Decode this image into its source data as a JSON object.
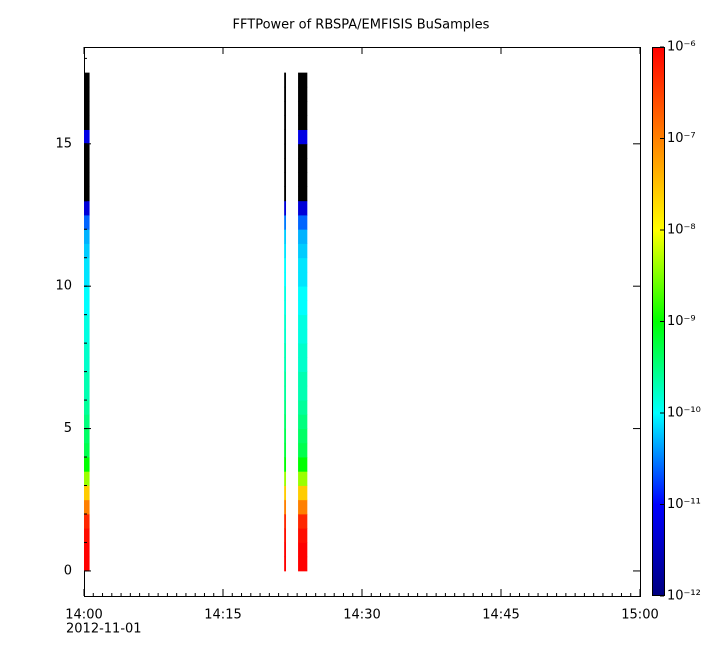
{
  "chart_data": {
    "type": "spectrogram",
    "title": "FFTPower of RBSPA/EMFISIS  BuSamples",
    "xlim": [
      0,
      60
    ],
    "xticks": [
      {
        "value": 0,
        "label": "14:00"
      },
      {
        "value": 15,
        "label": "14:15"
      },
      {
        "value": 30,
        "label": "14:30"
      },
      {
        "value": 45,
        "label": "14:45"
      },
      {
        "value": 60,
        "label": "15:00"
      }
    ],
    "xminor_step": 1,
    "date_label": "2012-11-01",
    "ylim": [
      -0.88,
      18.4
    ],
    "yticks": [
      0,
      5,
      10,
      15
    ],
    "yminor_step": 1,
    "zlim": [
      1e-12,
      1e-06
    ],
    "zlog": true,
    "zticks": [
      {
        "value": 1e-06,
        "label": "10⁻⁶"
      },
      {
        "value": 1e-07,
        "label": "10⁻⁷"
      },
      {
        "value": 1e-08,
        "label": "10⁻⁸"
      },
      {
        "value": 1e-09,
        "label": "10⁻⁹"
      },
      {
        "value": 1e-10,
        "label": "10⁻¹⁰"
      },
      {
        "value": 1e-11,
        "label": "10⁻¹¹"
      },
      {
        "value": 1e-12,
        "label": "10⁻¹²"
      }
    ],
    "colormap": [
      "#00007f",
      "#0000ff",
      "#00ffff",
      "#00ff00",
      "#ffff00",
      "#ff8000",
      "#ff0000"
    ],
    "under_color": "#000000",
    "y_edges": [
      0,
      0.5,
      1,
      1.5,
      2,
      2.5,
      3,
      3.5,
      4,
      4.5,
      5,
      5.5,
      6,
      6.5,
      7,
      7.5,
      8,
      8.5,
      9,
      9.5,
      10,
      10.5,
      11,
      11.5,
      12,
      12.5,
      13,
      13.5,
      14,
      14.5,
      15,
      15.5,
      16,
      16.5,
      17,
      17.5
    ],
    "columns": [
      {
        "x": [
          0,
          0.6
        ],
        "z": [
          1e-06,
          1e-06,
          7.9e-07,
          5e-07,
          1e-07,
          2.5e-08,
          4e-09,
          1e-09,
          5e-10,
          4e-10,
          3.2e-10,
          2.5e-10,
          2e-10,
          2e-10,
          1.6e-10,
          1.6e-10,
          1.3e-10,
          1.3e-10,
          1e-10,
          1e-10,
          7.9e-11,
          7.9e-11,
          6.3e-11,
          5e-11,
          2.5e-11,
          5e-12,
          1e-13,
          1e-13,
          1e-13,
          1e-13,
          6e-12,
          1e-13,
          1e-13,
          1e-13,
          1e-13
        ]
      },
      {
        "x": [
          21.6,
          21.8
        ],
        "z": [
          1e-06,
          1e-06,
          7.9e-07,
          5e-07,
          1e-07,
          2.5e-08,
          4e-09,
          1e-09,
          6e-10,
          5e-10,
          4e-10,
          3.2e-10,
          2.5e-10,
          2.5e-10,
          2e-10,
          2e-10,
          1.6e-10,
          1.6e-10,
          1.3e-10,
          1.3e-10,
          1e-10,
          1e-10,
          7.9e-11,
          6.3e-11,
          3e-11,
          5e-12,
          1e-13,
          1e-13,
          1e-13,
          1e-13,
          1e-13,
          1e-13,
          1e-13,
          1e-13,
          1e-13
        ]
      },
      {
        "x": [
          23.1,
          24.1
        ],
        "z": [
          1e-06,
          1e-06,
          7.9e-07,
          5e-07,
          1e-07,
          2.5e-08,
          4e-09,
          1e-09,
          5e-10,
          4e-10,
          3.2e-10,
          2.5e-10,
          2e-10,
          2e-10,
          1.6e-10,
          1.6e-10,
          1.3e-10,
          1.3e-10,
          1e-10,
          1e-10,
          7.9e-11,
          7.9e-11,
          6.3e-11,
          5e-11,
          2.5e-11,
          5e-12,
          1e-13,
          1e-13,
          1e-13,
          1e-13,
          6e-12,
          1e-13,
          1e-13,
          1e-13,
          1e-13
        ]
      }
    ]
  }
}
